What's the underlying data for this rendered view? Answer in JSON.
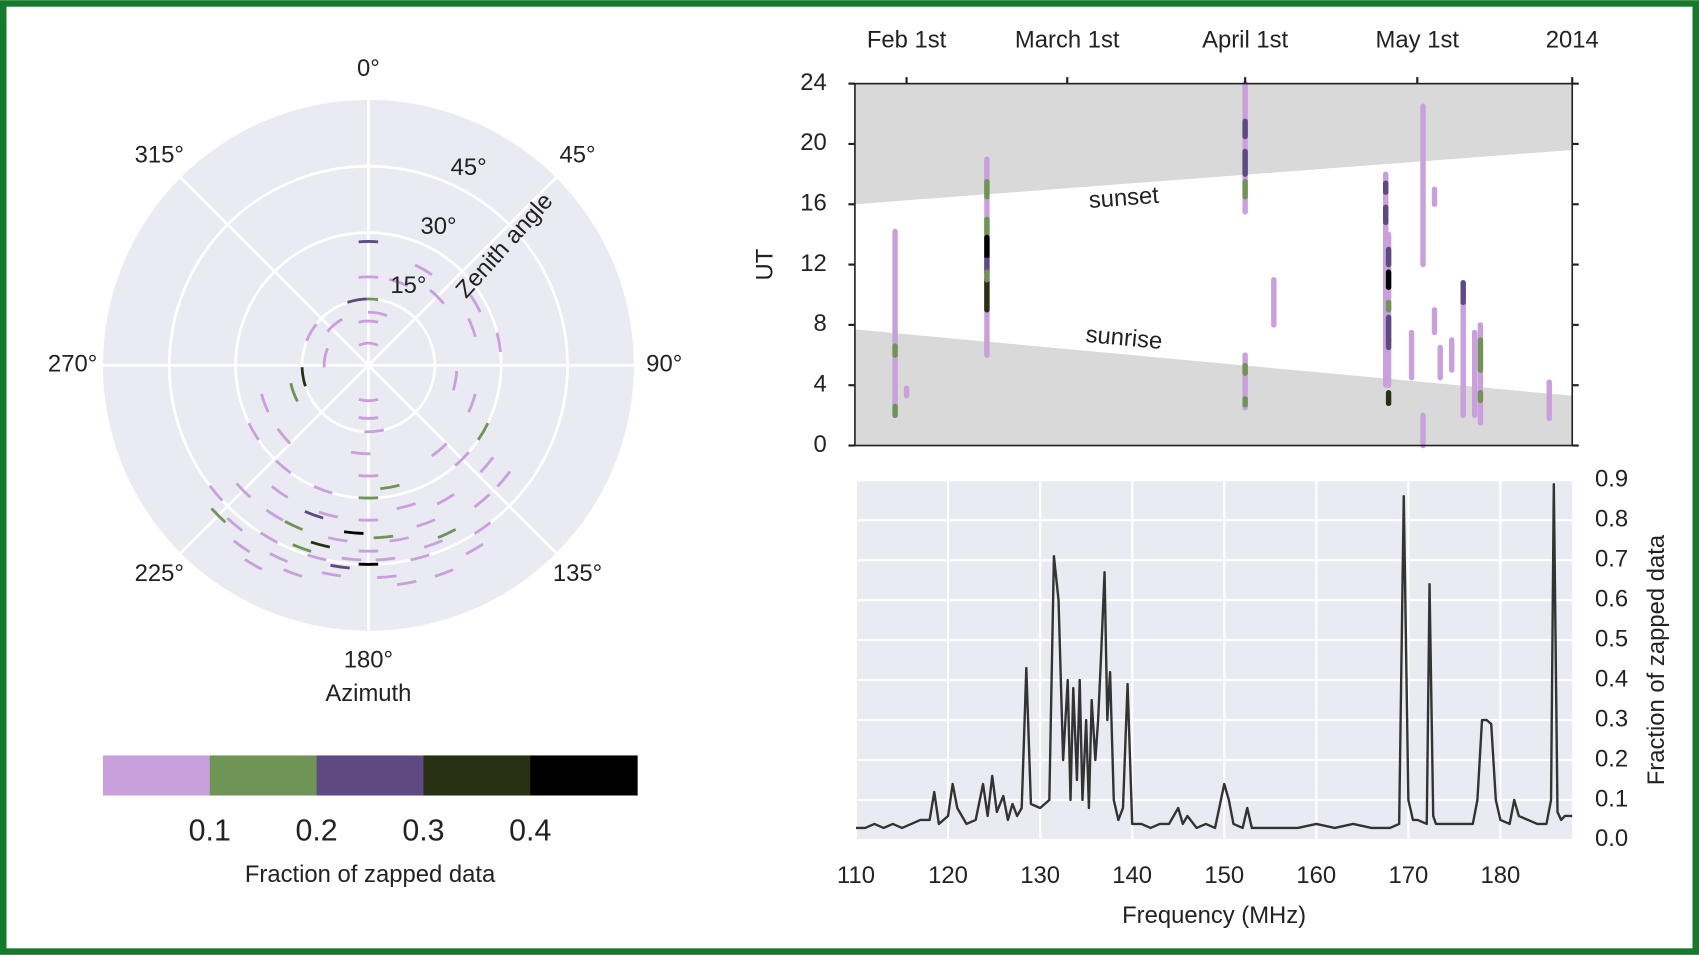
{
  "chart_data": [
    {
      "type": "polar",
      "xlabel": "Azimuth",
      "rlabel": "Zenith angle",
      "background": "#eaeaf2",
      "grid": true,
      "rlim": [
        0,
        60
      ],
      "rticks": [
        {
          "value": 15,
          "label": "15°"
        },
        {
          "value": 30,
          "label": "30°"
        },
        {
          "value": 45,
          "label": "45°"
        }
      ],
      "thetaticks": [
        {
          "value": 0,
          "label": "0°"
        },
        {
          "value": 45,
          "label": "45°"
        },
        {
          "value": 90,
          "label": "90°"
        },
        {
          "value": 135,
          "label": "135°"
        },
        {
          "value": 180,
          "label": "180°"
        },
        {
          "value": 225,
          "label": "225°"
        },
        {
          "value": 270,
          "label": "270°"
        },
        {
          "value": 315,
          "label": "315°"
        }
      ],
      "points": {
        "azimuth": [
          180,
          175,
          185,
          170,
          190,
          165,
          195,
          200,
          160,
          205,
          210,
          215,
          220,
          225,
          230,
          205,
          195,
          200,
          215,
          240,
          250,
          180,
          180,
          180,
          185,
          175,
          180,
          180,
          0,
          0,
          0,
          0,
          0,
          10,
          350,
          20,
          30,
          45,
          60,
          70,
          80,
          100,
          110,
          120,
          130,
          140,
          145,
          150,
          155,
          160,
          165,
          170,
          185,
          180,
          195,
          188,
          200,
          210,
          190,
          175,
          170,
          260,
          280,
          300,
          320,
          250,
          230,
          220,
          140,
          135,
          130,
          150,
          160,
          200,
          175,
          225,
          212
        ],
        "zenith": [
          42,
          44,
          44,
          40,
          40,
          45,
          45,
          50,
          50,
          48,
          52,
          50,
          47,
          40,
          45,
          40,
          35,
          30,
          35,
          30,
          25,
          35,
          30,
          25,
          20,
          15,
          12,
          8,
          5,
          10,
          15,
          20,
          28,
          12,
          15,
          20,
          25,
          22,
          28,
          25,
          30,
          20,
          25,
          30,
          35,
          40,
          45,
          48,
          42,
          38,
          33,
          28,
          38,
          45,
          42,
          46,
          44,
          45,
          48,
          48,
          50,
          15,
          10,
          15,
          12,
          18,
          25,
          30,
          25,
          30,
          40,
          35,
          43,
          36,
          39,
          48,
          40
        ],
        "fraction": [
          0.05,
          0.05,
          0.05,
          0.05,
          0.05,
          0.05,
          0.05,
          0.05,
          0.05,
          0.05,
          0.05,
          0.05,
          0.05,
          0.05,
          0.05,
          0.15,
          0.05,
          0.05,
          0.05,
          0.05,
          0.05,
          0.05,
          0.15,
          0.05,
          0.05,
          0.05,
          0.05,
          0.05,
          0.05,
          0.05,
          0.15,
          0.05,
          0.25,
          0.05,
          0.25,
          0.05,
          0.05,
          0.05,
          0.05,
          0.05,
          0.05,
          0.05,
          0.05,
          0.15,
          0.05,
          0.05,
          0.05,
          0.05,
          0.15,
          0.05,
          0.05,
          0.15,
          0.45,
          0.45,
          0.35,
          0.25,
          0.15,
          0.05,
          0.05,
          0.05,
          0.05,
          0.35,
          0.05,
          0.05,
          0.05,
          0.15,
          0.05,
          0.05,
          0.05,
          0.05,
          0.05,
          0.05,
          0.05,
          0.25,
          0.15,
          0.15,
          0.05
        ]
      }
    },
    {
      "type": "colorbar",
      "label": "Fraction of zapped data",
      "bounds": [
        0,
        0.1,
        0.2,
        0.3,
        0.4,
        0.5
      ],
      "colors": [
        "#c9a0dc",
        "#6e9456",
        "#5f4983",
        "#283014",
        "#000000"
      ],
      "ticks": [
        0.1,
        0.2,
        0.3,
        0.4
      ]
    },
    {
      "type": "segments",
      "ylabel": "UT",
      "xlim": [
        23,
        148
      ],
      "xticks": [
        {
          "value": 32,
          "label": "Feb 1st"
        },
        {
          "value": 60,
          "label": "March 1st"
        },
        {
          "value": 91,
          "label": "April 1st"
        },
        {
          "value": 121,
          "label": "May 1st"
        },
        {
          "value": 148,
          "label": "2014"
        }
      ],
      "ylim": [
        0,
        24
      ],
      "yticks": [
        0,
        4,
        8,
        12,
        16,
        20,
        24
      ],
      "band_color": "#d9d9d9",
      "bands": [
        {
          "name": "sunset",
          "side": "above",
          "x": [
            23,
            148
          ],
          "y": [
            16,
            19.6
          ]
        },
        {
          "name": "sunrise",
          "side": "below",
          "x": [
            23,
            148
          ],
          "y": [
            7.7,
            3.3
          ]
        }
      ],
      "segments": {
        "x": [
          30,
          30,
          30,
          32,
          46,
          46,
          46,
          46,
          46,
          46,
          46,
          91,
          91,
          91,
          91,
          91,
          91,
          91,
          96,
          115.5,
          115.5,
          115.5,
          116,
          116,
          116,
          116,
          116,
          116,
          116,
          122,
          122,
          124,
          124,
          127,
          129,
          129,
          131,
          132,
          132,
          132,
          144,
          120,
          125
        ],
        "y0": [
          2,
          6,
          2,
          3.3,
          6,
          16.5,
          14,
          12.5,
          11.5,
          9,
          11,
          15.5,
          20.5,
          18,
          16.5,
          2.5,
          4.8,
          2.7,
          8,
          4,
          16.8,
          14.8,
          4,
          10.5,
          12,
          7,
          6.5,
          2.8,
          9,
          0,
          12,
          7.5,
          16,
          5,
          2,
          9.5,
          2,
          1.5,
          5,
          3,
          1.8,
          4.5,
          4.5
        ],
        "y1": [
          14.2,
          6.6,
          2.6,
          3.8,
          19,
          17.5,
          15,
          13.8,
          12.3,
          11,
          11.5,
          24,
          21.5,
          19.5,
          17.5,
          6,
          5.3,
          3.1,
          11,
          18,
          17.4,
          15.8,
          14,
          11.5,
          13,
          8.5,
          7,
          3.5,
          9.5,
          2,
          22.5,
          9,
          17,
          7,
          10.5,
          10.8,
          7.5,
          8,
          7,
          3.5,
          4.2,
          7.5,
          6.5
        ],
        "fraction": [
          0.05,
          0.15,
          0.15,
          0.05,
          0.05,
          0.15,
          0.15,
          0.45,
          0.25,
          0.35,
          0.15,
          0.05,
          0.25,
          0.25,
          0.15,
          0.05,
          0.15,
          0.15,
          0.05,
          0.05,
          0.25,
          0.25,
          0.05,
          0.45,
          0.25,
          0.25,
          0.25,
          0.35,
          0.15,
          0.05,
          0.05,
          0.05,
          0.05,
          0.05,
          0.05,
          0.25,
          0.05,
          0.05,
          0.15,
          0.15,
          0.05,
          0.05,
          0.05
        ]
      }
    },
    {
      "type": "line",
      "xlabel": "Frequency (MHz)",
      "ylabel": "Fraction of zapped data",
      "background": "#eaeaf2",
      "grid": true,
      "color": "#333333",
      "xlim": [
        110,
        187.8
      ],
      "xticks": [
        110,
        120,
        130,
        140,
        150,
        160,
        170,
        180
      ],
      "ylim": [
        0,
        0.9
      ],
      "yticks": [
        {
          "value": 0,
          "label": "0.0"
        },
        0.1,
        0.2,
        0.3,
        0.4,
        0.5,
        0.6,
        0.7,
        0.8,
        0.9
      ],
      "x": [
        110,
        111,
        112,
        113,
        114,
        115,
        116,
        117,
        118,
        118.5,
        119,
        120,
        120.5,
        121,
        122,
        123,
        123.8,
        124.3,
        124.8,
        125.3,
        126,
        126.5,
        127,
        127.5,
        128,
        128.5,
        129,
        130,
        131,
        131.5,
        132,
        132.5,
        133,
        133.3,
        133.6,
        134,
        134.3,
        134.6,
        135,
        135.3,
        135.6,
        136,
        136.3,
        136.6,
        137,
        137.3,
        137.6,
        138,
        138.5,
        139,
        139.5,
        140,
        141,
        142,
        143,
        144,
        145,
        145.5,
        146,
        147,
        148,
        149,
        150,
        150.5,
        151,
        152,
        152.5,
        153,
        154,
        156,
        158,
        160,
        162,
        164,
        166,
        168,
        169,
        169.5,
        170,
        170.5,
        171,
        172,
        172.3,
        172.7,
        173,
        175,
        177,
        177.5,
        178,
        178.5,
        179,
        179.5,
        180,
        181,
        181.5,
        182,
        183,
        184,
        185,
        185.5,
        185.8,
        186.2,
        186.6,
        187,
        187.8
      ],
      "values": [
        0.03,
        0.03,
        0.04,
        0.03,
        0.04,
        0.03,
        0.04,
        0.05,
        0.05,
        0.12,
        0.04,
        0.06,
        0.14,
        0.08,
        0.04,
        0.05,
        0.14,
        0.06,
        0.16,
        0.07,
        0.11,
        0.05,
        0.09,
        0.06,
        0.08,
        0.43,
        0.09,
        0.08,
        0.1,
        0.71,
        0.6,
        0.2,
        0.4,
        0.1,
        0.38,
        0.15,
        0.4,
        0.1,
        0.3,
        0.08,
        0.35,
        0.2,
        0.3,
        0.45,
        0.67,
        0.3,
        0.42,
        0.1,
        0.05,
        0.08,
        0.39,
        0.04,
        0.04,
        0.03,
        0.04,
        0.04,
        0.08,
        0.04,
        0.06,
        0.03,
        0.04,
        0.03,
        0.14,
        0.1,
        0.04,
        0.03,
        0.08,
        0.03,
        0.03,
        0.03,
        0.03,
        0.04,
        0.03,
        0.04,
        0.03,
        0.03,
        0.04,
        0.86,
        0.1,
        0.05,
        0.05,
        0.04,
        0.64,
        0.06,
        0.04,
        0.04,
        0.04,
        0.1,
        0.3,
        0.3,
        0.29,
        0.1,
        0.05,
        0.04,
        0.1,
        0.06,
        0.05,
        0.04,
        0.04,
        0.1,
        0.89,
        0.07,
        0.05,
        0.06,
        0.06
      ]
    }
  ]
}
